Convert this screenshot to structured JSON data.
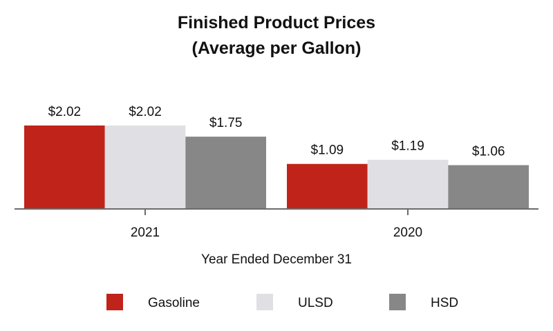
{
  "chart_data": {
    "type": "bar",
    "title": "Finished Product Prices",
    "subtitle": "(Average per Gallon)",
    "xlabel": "Year Ended December 31",
    "ylabel": "",
    "categories": [
      "2021",
      "2020"
    ],
    "series": [
      {
        "name": "Gasoline",
        "values": [
          2.02,
          1.09
        ],
        "labels": [
          "$2.02",
          "$1.09"
        ],
        "color": "#c0231a"
      },
      {
        "name": "ULSD",
        "values": [
          2.02,
          1.19
        ],
        "labels": [
          "$2.02",
          "$1.19"
        ],
        "color": "#e0e0e4"
      },
      {
        "name": "HSD",
        "values": [
          1.75,
          1.06
        ],
        "labels": [
          "$1.75",
          "$1.06"
        ],
        "color": "#878787"
      }
    ],
    "ylim": [
      0,
      2.02
    ],
    "grid": false,
    "legend_position": "bottom"
  }
}
